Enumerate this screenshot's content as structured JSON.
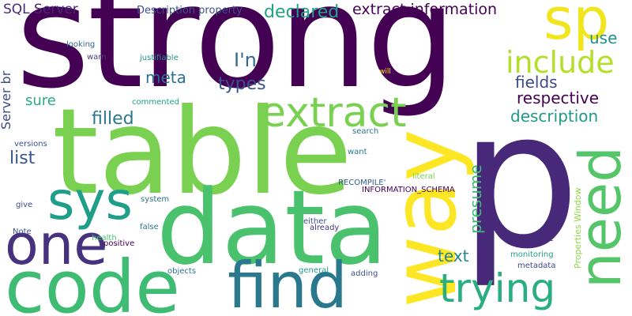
{
  "palette": {
    "dark_purple": "#440154",
    "indigo": "#3b2f80",
    "blue": "#31688e",
    "teal": "#21918c",
    "green": "#35b779",
    "light_green": "#6ece58",
    "lime": "#b5de2b",
    "yellow": "#fde725"
  },
  "words": [
    {
      "text": "strong",
      "color": "#440154"
    },
    {
      "text": "p",
      "color": "#482878"
    },
    {
      "text": "table",
      "color": "#7ad151"
    },
    {
      "text": "data",
      "color": "#4ac16d"
    },
    {
      "text": "code",
      "color": "#3fbc73"
    },
    {
      "text": "way",
      "color": "#fde725"
    },
    {
      "text": "one",
      "color": "#46327e"
    },
    {
      "text": "find",
      "color": "#2a788e"
    },
    {
      "text": "sys",
      "color": "#1f9e89"
    },
    {
      "text": "need",
      "color": "#54c568"
    },
    {
      "text": "extract",
      "color": "#7ad151"
    },
    {
      "text": "trying",
      "color": "#29af7f"
    },
    {
      "text": "sp",
      "color": "#f1e51d"
    },
    {
      "text": "include",
      "color": "#b5de2b"
    },
    {
      "text": "I'n",
      "color": "#31688e"
    },
    {
      "text": "declared",
      "color": "#20a386"
    },
    {
      "text": "extract information",
      "color": "#440154"
    },
    {
      "text": "meta",
      "color": "#2d708e"
    },
    {
      "text": "types",
      "color": "#3b528b"
    },
    {
      "text": "fields",
      "color": "#3e4989"
    },
    {
      "text": "respective",
      "color": "#440154"
    },
    {
      "text": "description",
      "color": "#1f9a8a"
    },
    {
      "text": "filled",
      "color": "#2a788e"
    },
    {
      "text": "sure",
      "color": "#26ad81"
    },
    {
      "text": "list",
      "color": "#39568c"
    },
    {
      "text": "text",
      "color": "#25848e"
    },
    {
      "text": "presume",
      "color": "#3dbc74"
    },
    {
      "text": "use",
      "color": "#21918c"
    },
    {
      "text": "SQL Server",
      "color": "#482878"
    },
    {
      "text": "Description property",
      "color": "#3b528b"
    },
    {
      "text": "Server br",
      "color": "#3e4989"
    },
    {
      "text": "looking",
      "color": "#31688e"
    },
    {
      "text": "warn",
      "color": "#433e85"
    },
    {
      "text": "justifiable",
      "color": "#21918c"
    },
    {
      "text": "will",
      "color": "#fde725"
    },
    {
      "text": "commented",
      "color": "#1f9e89"
    },
    {
      "text": "search",
      "color": "#2c728e"
    },
    {
      "text": "versions",
      "color": "#3b528b"
    },
    {
      "text": "want",
      "color": "#2a788e"
    },
    {
      "text": "literal",
      "color": "#7ad151"
    },
    {
      "text": "RECOMPILE'",
      "color": "#365c8d"
    },
    {
      "text": "INFORMATION_SCHEMA",
      "color": "#440154"
    },
    {
      "text": "give",
      "color": "#3e4989"
    },
    {
      "text": "system",
      "color": "#2c728e"
    },
    {
      "text": "either",
      "color": "#3b528b"
    },
    {
      "text": "already",
      "color": "#46327e"
    },
    {
      "text": "Note",
      "color": "#3b528b"
    },
    {
      "text": "false",
      "color": "#2a788e"
    },
    {
      "text": "health",
      "color": "#4ac16d"
    },
    {
      "text": "positive",
      "color": "#440154"
    },
    {
      "text": "RECOMPILE",
      "color": "#482878"
    },
    {
      "text": "Properties Window",
      "color": "#8fd744"
    },
    {
      "text": "monitoring",
      "color": "#1f9e89"
    },
    {
      "text": "metadata",
      "color": "#3e4989"
    },
    {
      "text": "objects",
      "color": "#2c728e"
    },
    {
      "text": "general",
      "color": "#1f9e89"
    },
    {
      "text": "adding",
      "color": "#3b528b"
    }
  ]
}
